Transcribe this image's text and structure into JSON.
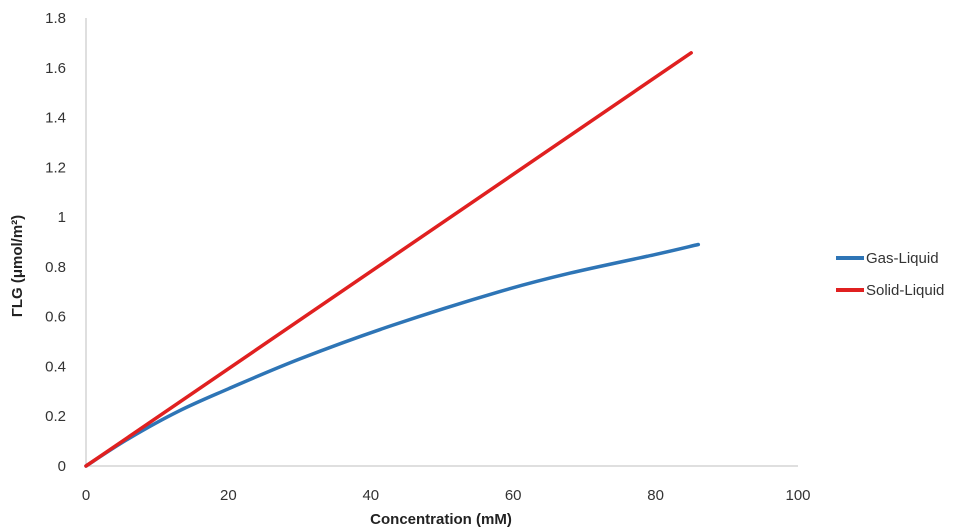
{
  "chart_data": {
    "type": "line",
    "xlabel": "Concentration (mM)",
    "ylabel": "ΓLG (μmol/m²)",
    "xlim": [
      0,
      100
    ],
    "ylim": [
      0,
      1.8
    ],
    "xticks": [
      "0",
      "20",
      "40",
      "60",
      "80",
      "100"
    ],
    "yticks": [
      "0",
      "0.2",
      "0.4",
      "0.6",
      "0.8",
      "1",
      "1.2",
      "1.4",
      "1.6",
      "1.8"
    ],
    "grid": false,
    "legend_position": "right",
    "series": [
      {
        "name": "Gas-Liquid",
        "color": "#2E75B6",
        "x": [
          0,
          6,
          13,
          20,
          30,
          43,
          58,
          68,
          80,
          86
        ],
        "y": [
          0,
          0.11,
          0.22,
          0.31,
          0.43,
          0.565,
          0.7,
          0.775,
          0.85,
          0.89
        ]
      },
      {
        "name": "Solid-Liquid",
        "color": "#E02020",
        "x": [
          0,
          85
        ],
        "y": [
          0,
          1.66
        ]
      }
    ]
  }
}
